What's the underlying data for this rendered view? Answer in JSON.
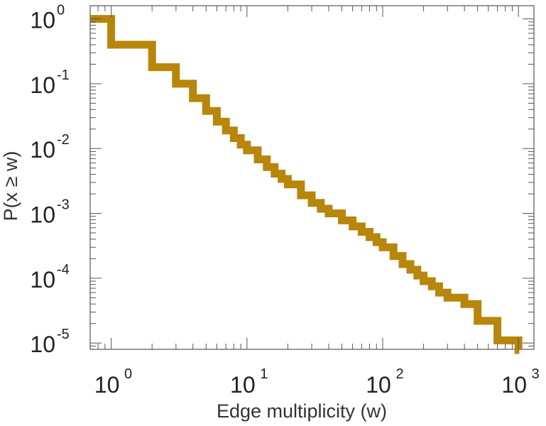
{
  "chart_data": {
    "type": "line",
    "title": "",
    "xlabel": "Edge multiplicity (w)",
    "ylabel": "P(x ≥ w)",
    "xscale": "log",
    "yscale": "log",
    "xlim": [
      0.7,
      1300
    ],
    "ylim": [
      8e-06,
      1.6
    ],
    "grid": false,
    "legend": "none",
    "line_style": "step",
    "x_ticks": [
      {
        "base": "10",
        "exp": "0",
        "value": 1
      },
      {
        "base": "10",
        "exp": "1",
        "value": 10
      },
      {
        "base": "10",
        "exp": "2",
        "value": 100
      },
      {
        "base": "10",
        "exp": "3",
        "value": 1000
      }
    ],
    "y_ticks": [
      {
        "base": "10",
        "exp": "0",
        "value": 1
      },
      {
        "base": "10",
        "exp": "-1",
        "value": 0.1
      },
      {
        "base": "10",
        "exp": "-2",
        "value": 0.01
      },
      {
        "base": "10",
        "exp": "-3",
        "value": 0.001
      },
      {
        "base": "10",
        "exp": "-4",
        "value": 0.0001
      },
      {
        "base": "10",
        "exp": "-5",
        "value": 1e-05
      }
    ],
    "series": [
      {
        "color": "#b8860b",
        "x": [
          0.7,
          1,
          2,
          3,
          4,
          5,
          6,
          7,
          8,
          9,
          10,
          12,
          14,
          16,
          18,
          20,
          25,
          30,
          35,
          40,
          50,
          60,
          70,
          80,
          90,
          100,
          120,
          140,
          160,
          180,
          200,
          230,
          260,
          300,
          400,
          500,
          700,
          1000
        ],
        "y": [
          1,
          0.4,
          0.18,
          0.1,
          0.06,
          0.038,
          0.026,
          0.019,
          0.0145,
          0.0115,
          0.0094,
          0.0068,
          0.0052,
          0.0041,
          0.0034,
          0.0028,
          0.0019,
          0.00145,
          0.00118,
          0.001,
          0.00078,
          0.00063,
          0.00052,
          0.00043,
          0.00036,
          0.0003,
          0.00022,
          0.000165,
          0.000135,
          0.00011,
          9e-05,
          7.5e-05,
          6e-05,
          5e-05,
          4e-05,
          2.2e-05,
          1.1e-05,
          7.8e-06
        ]
      }
    ]
  }
}
